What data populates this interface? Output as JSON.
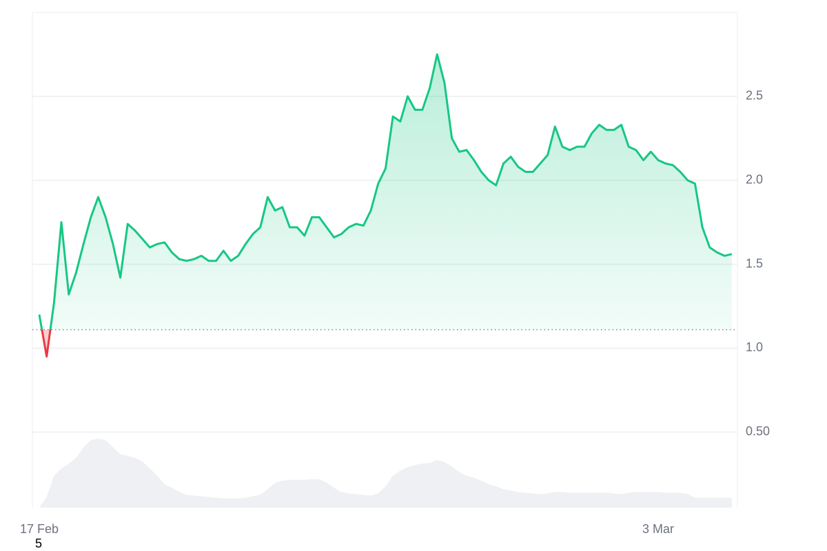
{
  "chart_data": {
    "type": "line",
    "x": [
      "17 Feb",
      null,
      null,
      null,
      null,
      null,
      null,
      null,
      null,
      null,
      null,
      null,
      null,
      null,
      null,
      null,
      null,
      null,
      null,
      null,
      null,
      null,
      null,
      null,
      null,
      null,
      null,
      null,
      null,
      null,
      null,
      null,
      null,
      null,
      null,
      null,
      null,
      null,
      null,
      null,
      null,
      null,
      null,
      null,
      null,
      null,
      null,
      null,
      null,
      null,
      null,
      null,
      null,
      null,
      null,
      null,
      null,
      null,
      null,
      null,
      null,
      null,
      null,
      null,
      null,
      null,
      null,
      null,
      null,
      null,
      null,
      null,
      null,
      null,
      null,
      null,
      null,
      null,
      null,
      null,
      null,
      null,
      null,
      null,
      "3 Mar",
      null,
      null,
      null,
      null,
      null,
      null,
      null,
      null,
      null,
      null
    ],
    "series": [
      {
        "name": "Price",
        "color": "#16c784",
        "below_color": "#ea3943",
        "values": [
          1.2,
          0.95,
          1.27,
          1.75,
          1.32,
          1.45,
          1.62,
          1.78,
          1.9,
          1.78,
          1.62,
          1.42,
          1.74,
          1.7,
          1.65,
          1.6,
          1.62,
          1.63,
          1.57,
          1.53,
          1.52,
          1.53,
          1.55,
          1.52,
          1.52,
          1.58,
          1.52,
          1.55,
          1.62,
          1.68,
          1.72,
          1.9,
          1.82,
          1.84,
          1.72,
          1.72,
          1.67,
          1.78,
          1.78,
          1.72,
          1.66,
          1.68,
          1.72,
          1.74,
          1.73,
          1.82,
          1.98,
          2.07,
          2.38,
          2.35,
          2.5,
          2.42,
          2.42,
          2.55,
          2.75,
          2.58,
          2.25,
          2.17,
          2.18,
          2.12,
          2.05,
          2.0,
          1.97,
          2.1,
          2.14,
          2.08,
          2.05,
          2.05,
          2.1,
          2.15,
          2.32,
          2.2,
          2.18,
          2.2,
          2.2,
          2.28,
          2.33,
          2.3,
          2.3,
          2.33,
          2.2,
          2.18,
          2.12,
          2.17,
          2.12,
          2.1,
          2.09,
          2.05,
          2.0,
          1.98,
          1.72,
          1.6,
          1.57,
          1.55,
          1.56
        ]
      },
      {
        "name": "Volume",
        "color": "#eef0f3",
        "values": [
          0,
          15,
          45,
          55,
          62,
          70,
          85,
          95,
          97,
          95,
          85,
          75,
          73,
          70,
          65,
          55,
          45,
          33,
          28,
          22,
          18,
          17,
          16,
          15,
          14,
          13,
          13,
          13,
          14,
          16,
          18,
          26,
          35,
          38,
          39,
          39,
          39,
          40,
          40,
          35,
          28,
          22,
          20,
          19,
          18,
          17,
          20,
          30,
          45,
          52,
          57,
          60,
          62,
          63,
          67,
          64,
          58,
          50,
          45,
          42,
          38,
          33,
          30,
          26,
          24,
          22,
          21,
          20,
          19,
          20,
          22,
          22,
          21,
          21,
          21,
          21,
          21,
          21,
          20,
          19,
          21,
          22,
          22,
          22,
          22,
          21,
          21,
          21,
          19,
          14,
          14,
          14,
          14,
          14,
          14
        ]
      }
    ],
    "baseline": 1.11,
    "ylim": [
      0.05,
      3.0
    ],
    "yticks": [
      {
        "value": 0.5,
        "label": "0.50"
      },
      {
        "value": 1,
        "label": "1.0"
      },
      {
        "value": 1.5,
        "label": "1.5"
      },
      {
        "value": 2,
        "label": "2.0"
      },
      {
        "value": 2.5,
        "label": "2.5"
      }
    ],
    "grid": true,
    "footnote": "5"
  }
}
